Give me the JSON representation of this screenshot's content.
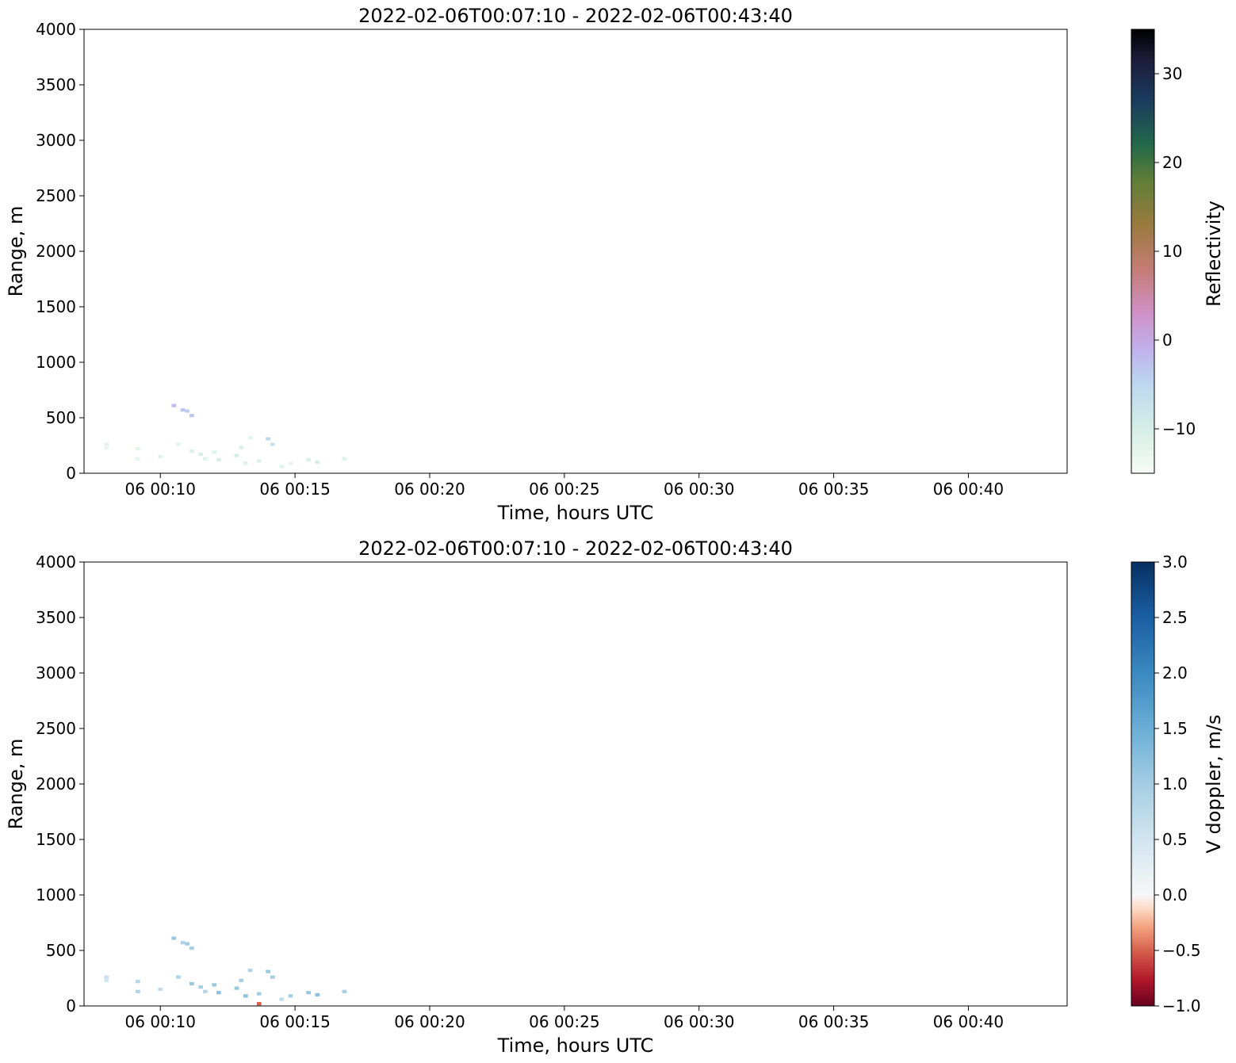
{
  "chart_data": [
    {
      "type": "heatmap",
      "title": "2022-02-06T00:07:10 - 2022-02-06T00:43:40",
      "xlabel": "Time, hours UTC",
      "ylabel": "Range, m",
      "xlim": [
        "2022-02-06T00:07:10",
        "2022-02-06T00:43:40"
      ],
      "ylim": [
        0,
        4000
      ],
      "xticks": [
        "06 00:10",
        "06 00:15",
        "06 00:20",
        "06 00:25",
        "06 00:30",
        "06 00:35",
        "06 00:40"
      ],
      "yticks": [
        "0",
        "500",
        "1000",
        "1500",
        "2000",
        "2500",
        "3000",
        "3500",
        "4000"
      ],
      "colorbar": {
        "label": "Reflectivity",
        "range": [
          -15,
          35
        ],
        "ticks": [
          "−10",
          "0",
          "10",
          "20",
          "30"
        ],
        "colormap": "cubehelix_r"
      },
      "cells": [
        {
          "t": "00:08:00",
          "r": 260,
          "v": -12
        },
        {
          "t": "00:08:00",
          "r": 230,
          "v": -13
        },
        {
          "t": "00:09:10",
          "r": 220,
          "v": -12
        },
        {
          "t": "00:09:10",
          "r": 130,
          "v": -12
        },
        {
          "t": "00:10:00",
          "r": 150,
          "v": -11
        },
        {
          "t": "00:10:30",
          "r": 610,
          "v": -2
        },
        {
          "t": "00:10:40",
          "r": 260,
          "v": -12
        },
        {
          "t": "00:10:50",
          "r": 570,
          "v": -3
        },
        {
          "t": "00:11:00",
          "r": 560,
          "v": -4
        },
        {
          "t": "00:11:10",
          "r": 520,
          "v": -3
        },
        {
          "t": "00:11:10",
          "r": 200,
          "v": -11
        },
        {
          "t": "00:11:30",
          "r": 170,
          "v": -10
        },
        {
          "t": "00:11:40",
          "r": 130,
          "v": -12
        },
        {
          "t": "00:12:00",
          "r": 190,
          "v": -11
        },
        {
          "t": "00:12:10",
          "r": 120,
          "v": -10
        },
        {
          "t": "00:12:50",
          "r": 160,
          "v": -10
        },
        {
          "t": "00:13:00",
          "r": 230,
          "v": -11
        },
        {
          "t": "00:13:10",
          "r": 90,
          "v": -11
        },
        {
          "t": "00:13:20",
          "r": 320,
          "v": -12
        },
        {
          "t": "00:13:40",
          "r": 110,
          "v": -11
        },
        {
          "t": "00:14:00",
          "r": 310,
          "v": -5
        },
        {
          "t": "00:14:10",
          "r": 260,
          "v": -8
        },
        {
          "t": "00:14:30",
          "r": 60,
          "v": -12
        },
        {
          "t": "00:14:50",
          "r": 90,
          "v": -13
        },
        {
          "t": "00:15:30",
          "r": 120,
          "v": -11
        },
        {
          "t": "00:15:50",
          "r": 100,
          "v": -10
        },
        {
          "t": "00:16:50",
          "r": 130,
          "v": -11
        }
      ]
    },
    {
      "type": "heatmap",
      "title": "2022-02-06T00:07:10 - 2022-02-06T00:43:40",
      "xlabel": "Time, hours UTC",
      "ylabel": "Range, m",
      "xlim": [
        "2022-02-06T00:07:10",
        "2022-02-06T00:43:40"
      ],
      "ylim": [
        0,
        4000
      ],
      "xticks": [
        "06 00:10",
        "06 00:15",
        "06 00:20",
        "06 00:25",
        "06 00:30",
        "06 00:35",
        "06 00:40"
      ],
      "yticks": [
        "0",
        "500",
        "1000",
        "1500",
        "2000",
        "2500",
        "3000",
        "3500",
        "4000"
      ],
      "colorbar": {
        "label": "V doppler, m/s",
        "range": [
          -1.0,
          3.0
        ],
        "ticks": [
          "−1.0",
          "−0.5",
          "0.0",
          "0.5",
          "1.0",
          "1.5",
          "2.0",
          "2.5",
          "3.0"
        ],
        "colormap": "RdBu"
      },
      "cells": [
        {
          "t": "00:08:00",
          "r": 260,
          "v": 0.6
        },
        {
          "t": "00:08:00",
          "r": 230,
          "v": 0.5
        },
        {
          "t": "00:09:10",
          "r": 220,
          "v": 0.8
        },
        {
          "t": "00:09:10",
          "r": 130,
          "v": 0.9
        },
        {
          "t": "00:10:00",
          "r": 150,
          "v": 0.7
        },
        {
          "t": "00:10:30",
          "r": 610,
          "v": 1.1
        },
        {
          "t": "00:10:40",
          "r": 260,
          "v": 0.9
        },
        {
          "t": "00:10:50",
          "r": 570,
          "v": 0.9
        },
        {
          "t": "00:11:00",
          "r": 560,
          "v": 1.0
        },
        {
          "t": "00:11:10",
          "r": 520,
          "v": 1.0
        },
        {
          "t": "00:11:10",
          "r": 200,
          "v": 1.1
        },
        {
          "t": "00:11:30",
          "r": 170,
          "v": 1.0
        },
        {
          "t": "00:11:40",
          "r": 130,
          "v": 0.8
        },
        {
          "t": "00:12:00",
          "r": 190,
          "v": 1.1
        },
        {
          "t": "00:12:10",
          "r": 120,
          "v": 1.2
        },
        {
          "t": "00:12:50",
          "r": 160,
          "v": 1.1
        },
        {
          "t": "00:13:00",
          "r": 230,
          "v": 1.0
        },
        {
          "t": "00:13:10",
          "r": 90,
          "v": 1.2
        },
        {
          "t": "00:13:20",
          "r": 320,
          "v": 0.9
        },
        {
          "t": "00:13:40",
          "r": 20,
          "v": -0.5
        },
        {
          "t": "00:13:40",
          "r": 110,
          "v": 1.0
        },
        {
          "t": "00:14:00",
          "r": 310,
          "v": 1.1
        },
        {
          "t": "00:14:10",
          "r": 260,
          "v": 1.0
        },
        {
          "t": "00:14:30",
          "r": 60,
          "v": 0.7
        },
        {
          "t": "00:14:50",
          "r": 90,
          "v": 1.0
        },
        {
          "t": "00:15:30",
          "r": 120,
          "v": 1.1
        },
        {
          "t": "00:15:50",
          "r": 100,
          "v": 1.2
        },
        {
          "t": "00:16:50",
          "r": 130,
          "v": 1.0
        }
      ]
    }
  ]
}
